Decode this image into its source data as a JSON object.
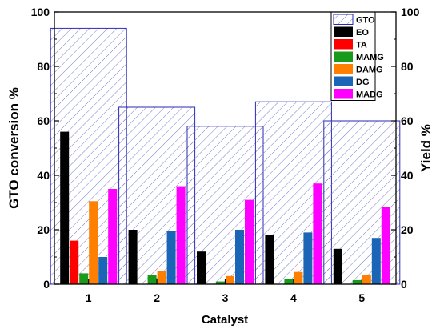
{
  "chart_data": {
    "type": "bar",
    "xlabel": "Catalyst",
    "ylabel_left": "GTO conversion %",
    "ylabel_right": "Yield %",
    "ylim": [
      0,
      100
    ],
    "yticks": [
      "0",
      "20",
      "40",
      "60",
      "80",
      "100"
    ],
    "categories": [
      "1",
      "2",
      "3",
      "4",
      "5"
    ],
    "conversion_series": {
      "name": "GTO",
      "axis": "left",
      "color": "#2a2ab8",
      "pattern": "diagonal-hatch",
      "values": [
        94,
        65,
        58,
        67,
        60
      ]
    },
    "series": [
      {
        "name": "EO",
        "axis": "right",
        "color": "#000000",
        "values": [
          56,
          20,
          12,
          18,
          13
        ]
      },
      {
        "name": "TA",
        "axis": "right",
        "color": "#ff0000",
        "values": [
          16,
          0,
          0,
          0,
          0
        ]
      },
      {
        "name": "MAMG",
        "axis": "right",
        "color": "#1a9a1a",
        "values": [
          4,
          3.5,
          1,
          2,
          1.5
        ]
      },
      {
        "name": "DAMG",
        "axis": "right",
        "color": "#ff8000",
        "values": [
          30.5,
          5,
          3,
          4.5,
          3.5
        ]
      },
      {
        "name": "DG",
        "axis": "right",
        "color": "#1a65b5",
        "values": [
          10,
          19.5,
          20,
          19,
          17
        ]
      },
      {
        "name": "MADG",
        "axis": "right",
        "color": "#ff00ff",
        "values": [
          35,
          36,
          31,
          37,
          28.5
        ]
      }
    ],
    "legend_placement": "top-right",
    "grid": false
  }
}
